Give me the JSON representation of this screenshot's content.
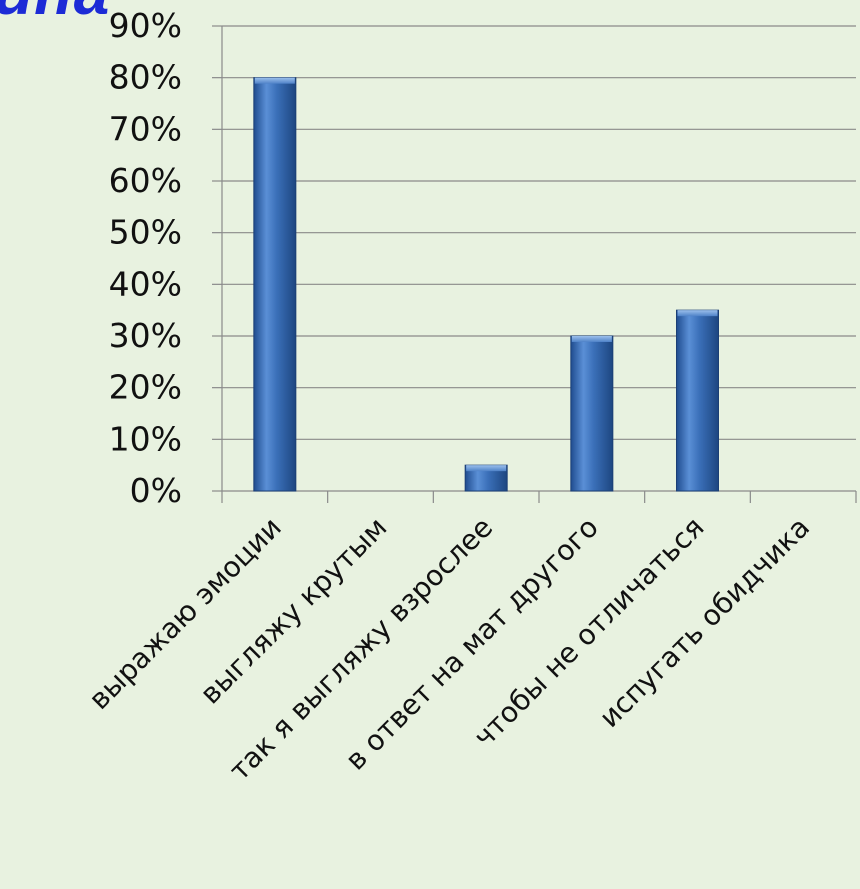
{
  "page": {
    "background": "#e8f2e0",
    "partial_title": "ина"
  },
  "chart_data": {
    "type": "bar",
    "title": "",
    "xlabel": "",
    "ylabel": "",
    "categories": [
      "выражаю эмоции",
      "выгляжу крутым",
      "так я выгляжу взрослее",
      "в ответ на мат другого",
      "чтобы не отличаться",
      "испугать обидчика"
    ],
    "values": [
      80,
      0,
      5,
      30,
      35,
      0
    ],
    "value_unit": "%",
    "ylim": [
      0,
      90
    ],
    "yticks": [
      "0%",
      "10%",
      "20%",
      "30%",
      "40%",
      "50%",
      "60%",
      "70%",
      "80%",
      "90%"
    ],
    "grid": true,
    "legend": "none",
    "bar_color": "#3a6fb8",
    "bar_style": "3d-cylinder-gradient"
  }
}
